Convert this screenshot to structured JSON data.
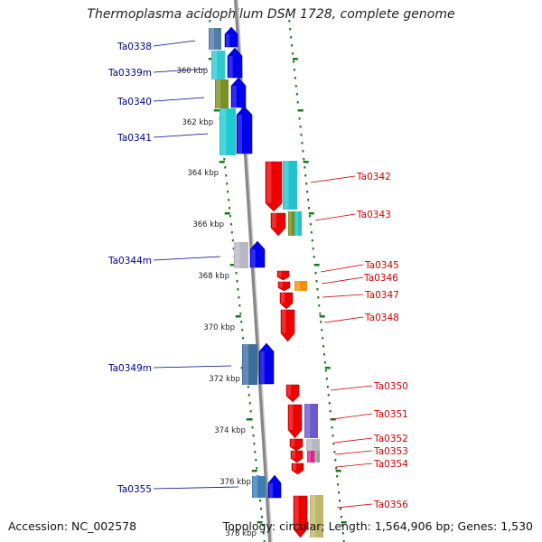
{
  "title": "Thermoplasma acidophilum DSM 1728, complete genome",
  "footer": {
    "accession": "Accession: NC_002578",
    "summary": "Topology: circular; Length: 1,564,906 bp; Genes: 1,530"
  },
  "scale_labels": [
    "360 kbp",
    "362 kbp",
    "364 kbp",
    "366 kbp",
    "368 kbp",
    "370 kbp",
    "372 kbp",
    "374 kbp",
    "376 kbp",
    "378 kbp"
  ],
  "genes_left": [
    "Ta0338",
    "Ta0339m",
    "Ta0340",
    "Ta0341",
    "Ta0344m",
    "Ta0349m",
    "Ta0355"
  ],
  "genes_right": [
    "Ta0342",
    "Ta0343",
    "Ta0345",
    "Ta0346",
    "Ta0347",
    "Ta0348",
    "Ta0350",
    "Ta0351",
    "Ta0352",
    "Ta0353",
    "Ta0354",
    "Ta0356"
  ],
  "colors": {
    "forward_strand": "#0000ee",
    "reverse_strand": "#ee0000",
    "axis": "#888888",
    "tick": "#1a7a1a",
    "label_left": "#00008b",
    "label_right": "#cc0000"
  }
}
